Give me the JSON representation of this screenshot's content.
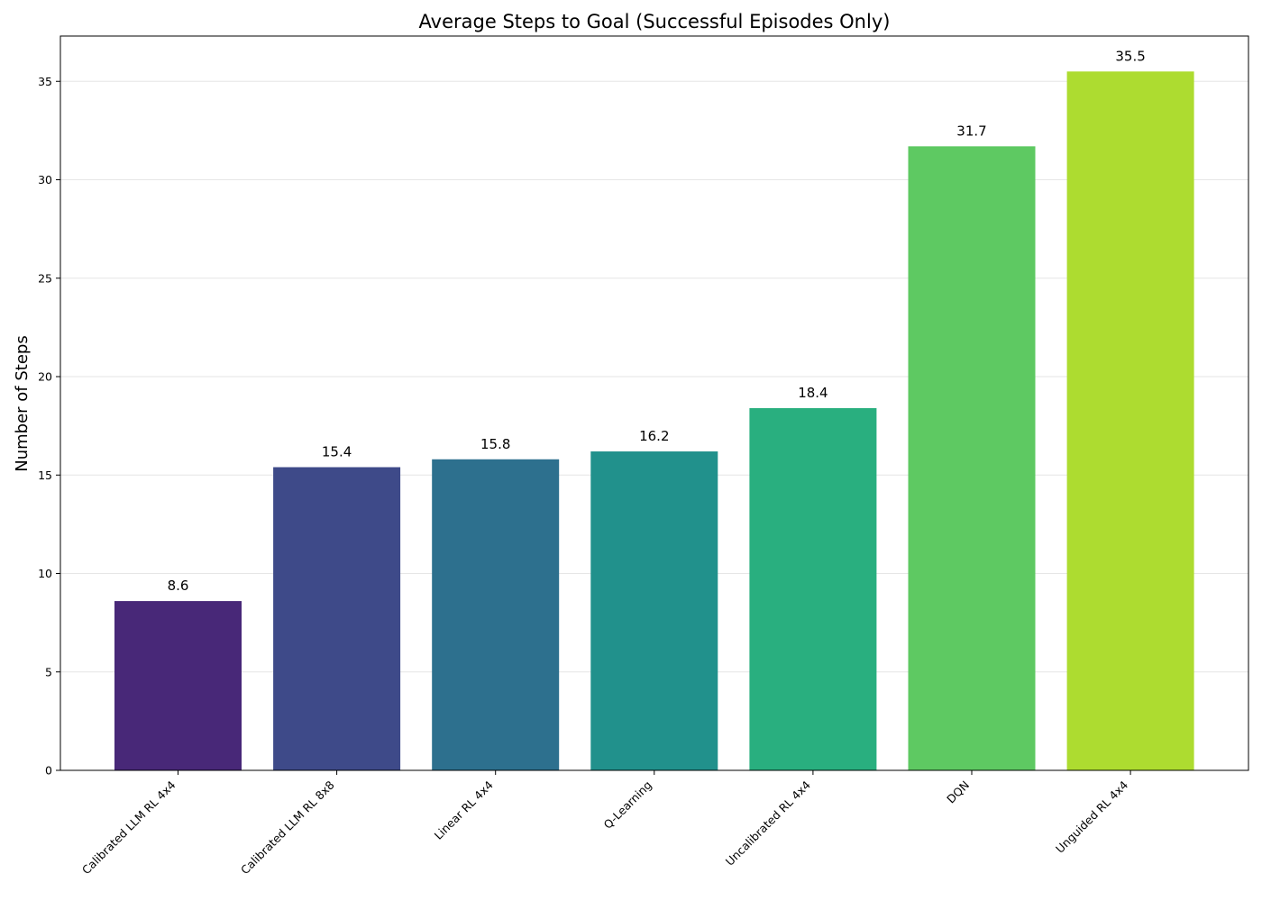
{
  "chart_data": {
    "type": "bar",
    "title": "Average Steps to Goal (Successful Episodes Only)",
    "xlabel": "",
    "ylabel": "Number of Steps",
    "categories": [
      "Calibrated LLM RL 4x4",
      "Calibrated LLM RL 8x8",
      "Linear RL 4x4",
      "Q-Learning",
      "Uncalibrated RL 4x4",
      "DQN",
      "Unguided RL 4x4"
    ],
    "values": [
      8.6,
      15.4,
      15.8,
      16.2,
      18.4,
      31.7,
      35.5
    ],
    "data_labels": [
      "8.6",
      "15.4",
      "15.8",
      "16.2",
      "18.4",
      "31.7",
      "35.5"
    ],
    "colors": [
      "#482878",
      "#3e4a89",
      "#2d708e",
      "#21918c",
      "#29af7f",
      "#5ec962",
      "#addc30"
    ],
    "ylim": [
      0,
      37.3
    ],
    "yticks": [
      0,
      5,
      10,
      15,
      20,
      25,
      30,
      35
    ],
    "grid": true,
    "x_tick_rotation": "45 degrees"
  }
}
